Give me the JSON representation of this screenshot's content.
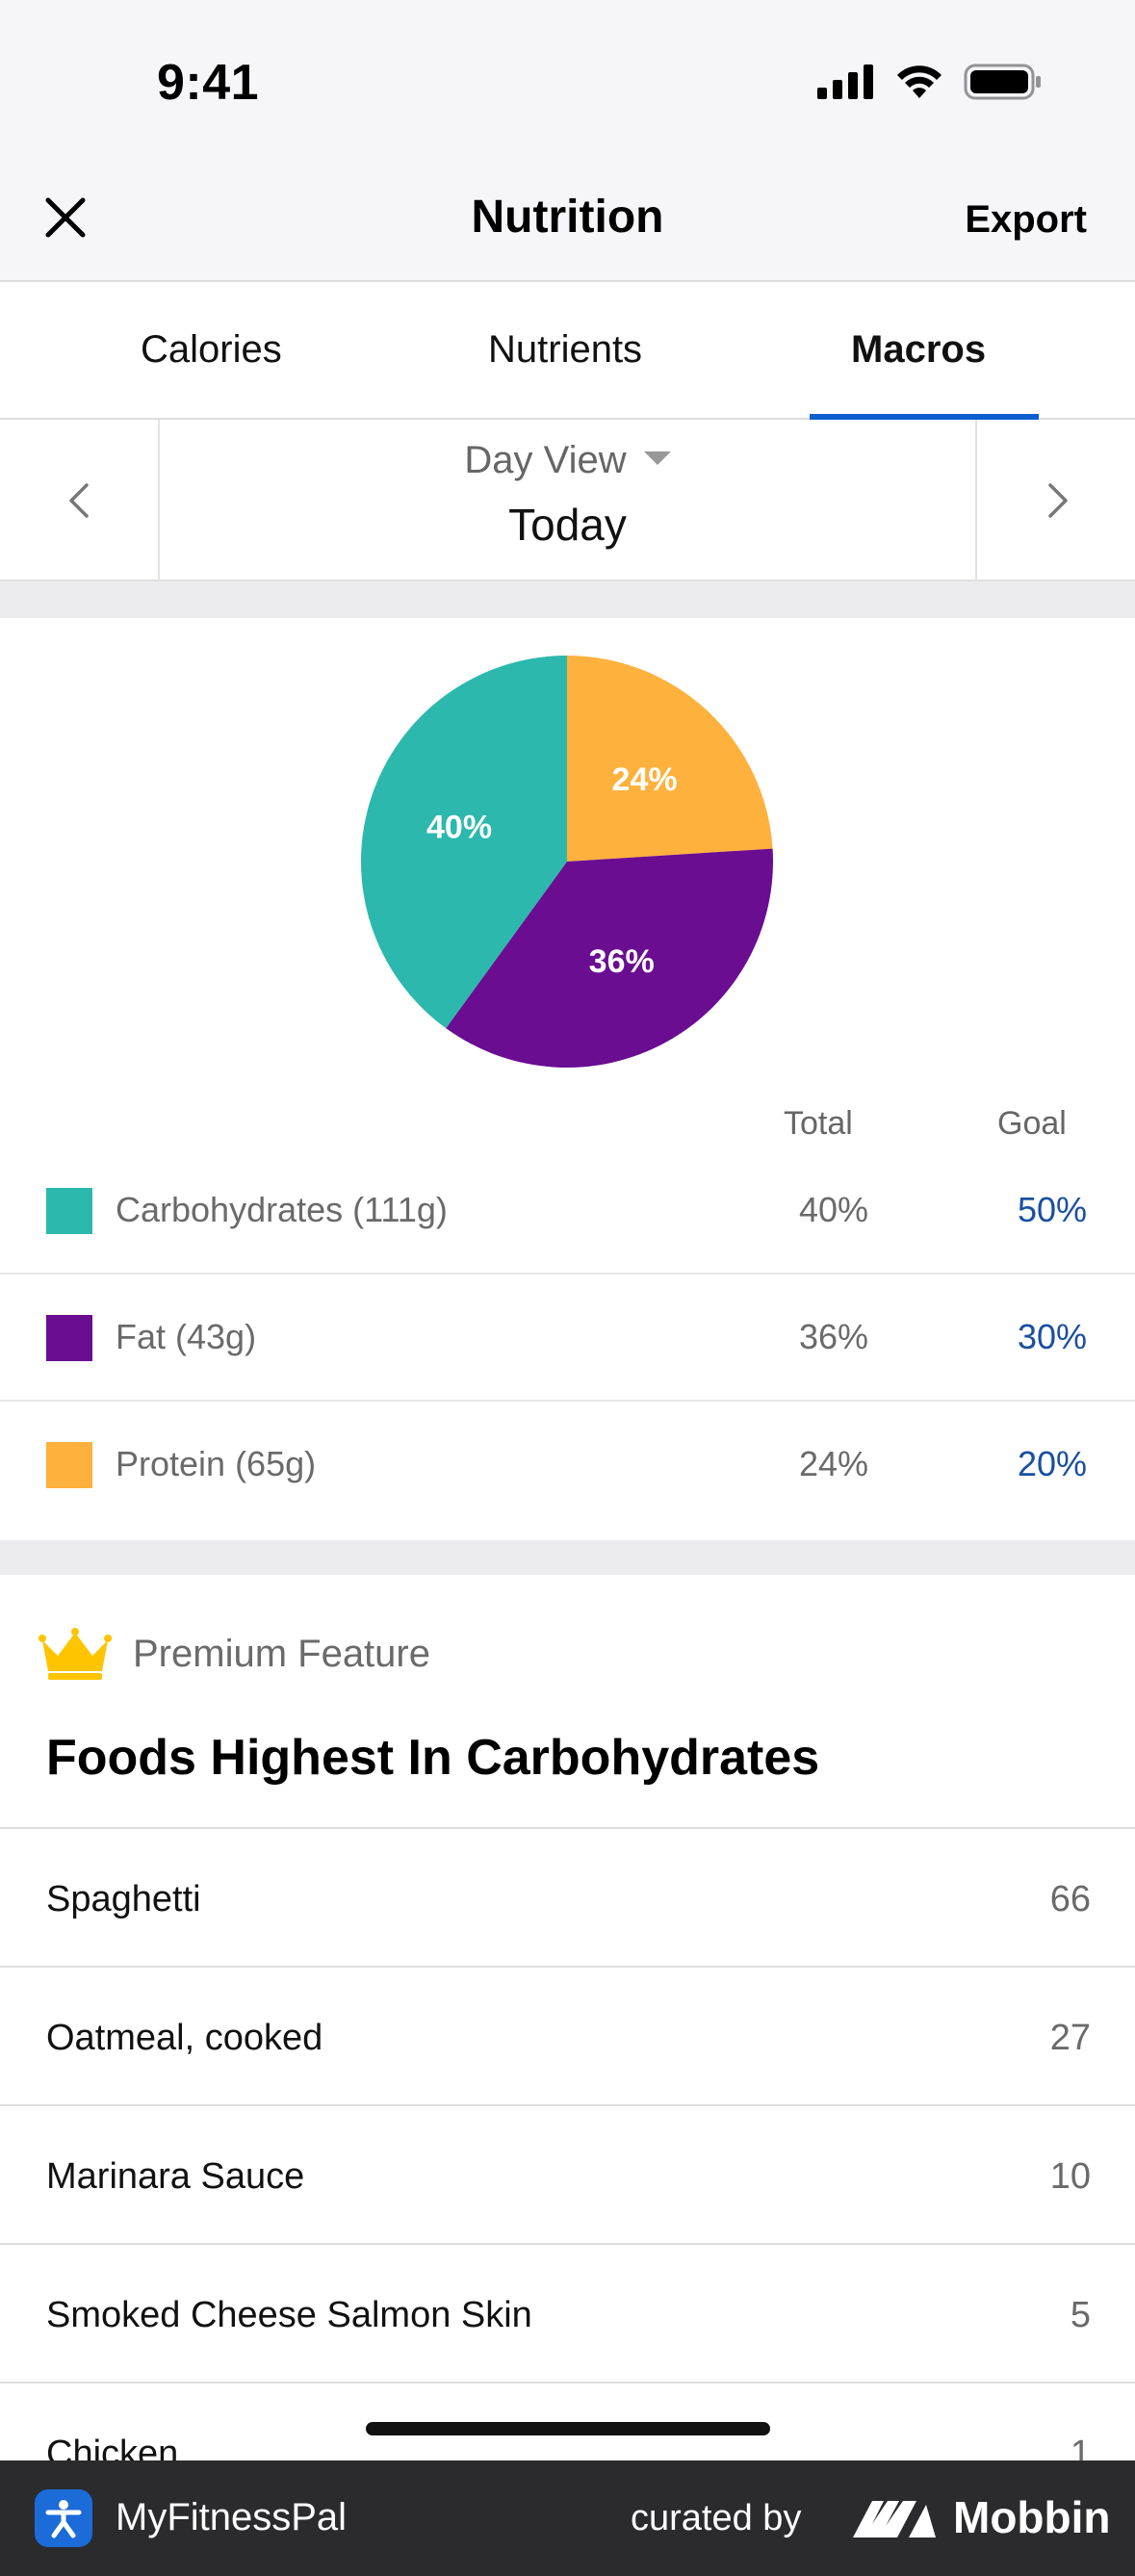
{
  "status_bar": {
    "time": "9:41"
  },
  "nav": {
    "title": "Nutrition",
    "export_label": "Export",
    "close_icon": "close-icon"
  },
  "tabs": [
    {
      "label": "Calories",
      "active": false
    },
    {
      "label": "Nutrients",
      "active": false
    },
    {
      "label": "Macros",
      "active": true
    }
  ],
  "date_nav": {
    "view_label": "Day View",
    "date": "Today"
  },
  "columns": {
    "total": "Total",
    "goal": "Goal"
  },
  "macros": [
    {
      "name": "Carbohydrates (111g)",
      "total": "40%",
      "goal": "50%",
      "color": "#2cb8ad"
    },
    {
      "name": "Fat (43g)",
      "total": "36%",
      "goal": "30%",
      "color": "#6a0d91"
    },
    {
      "name": "Protein (65g)",
      "total": "24%",
      "goal": "20%",
      "color": "#ffb13d"
    }
  ],
  "chart_data": {
    "type": "pie",
    "slices": [
      {
        "label": "24%",
        "value": 24,
        "color": "#ffb13d"
      },
      {
        "label": "36%",
        "value": 36,
        "color": "#6a0d91"
      },
      {
        "label": "40%",
        "value": 40,
        "color": "#2cb8ad"
      }
    ]
  },
  "premium": {
    "badge": "Premium Feature",
    "title": "Foods Highest In Carbohydrates",
    "foods": [
      {
        "name": "Spaghetti",
        "value": "66"
      },
      {
        "name": "Oatmeal, cooked",
        "value": "27"
      },
      {
        "name": "Marinara Sauce",
        "value": "10"
      },
      {
        "name": "Smoked Cheese Salmon Skin",
        "value": "5"
      },
      {
        "name": "Chicken",
        "value": "1"
      }
    ]
  },
  "footer": {
    "app_name": "MyFitnessPal",
    "curated_by": "curated by",
    "brand": "Mobbin"
  }
}
